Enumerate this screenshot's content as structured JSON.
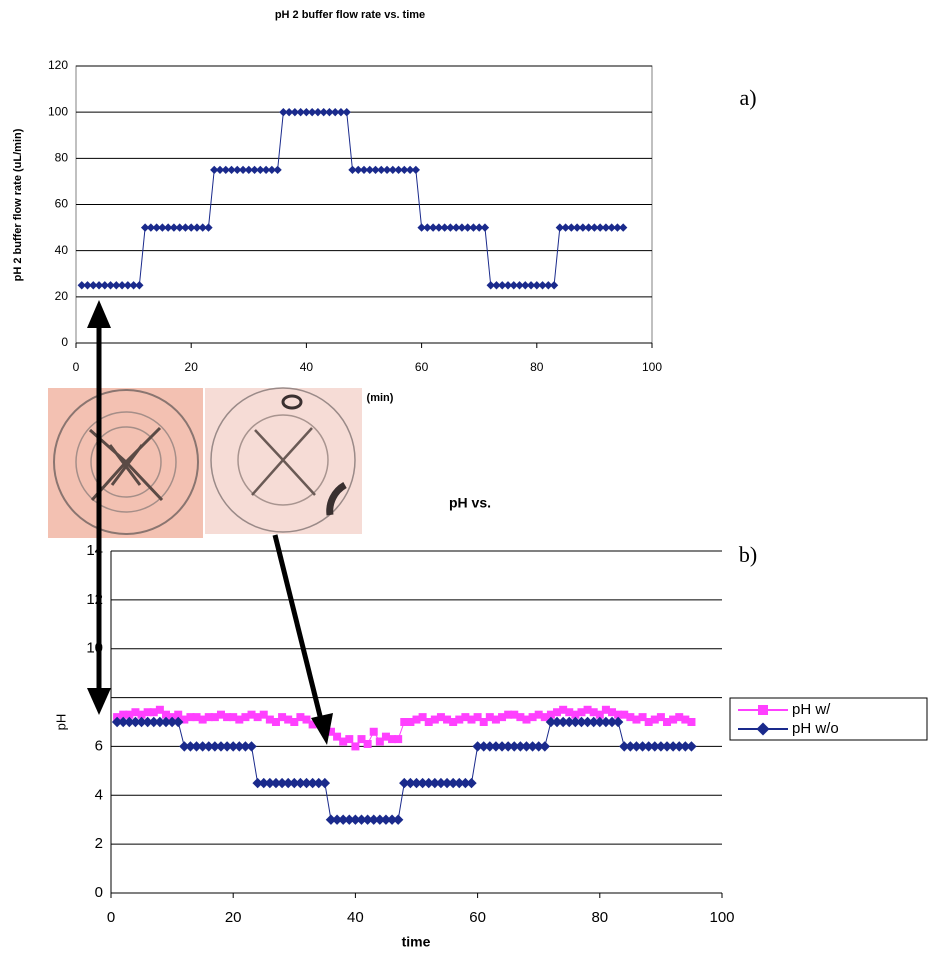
{
  "chart_data": [
    {
      "type": "line",
      "title": "pH 2 buffer flow rate vs. time",
      "panel_label": "a)",
      "x_label": "(min)",
      "y_label": "pH 2 buffer flow rate (uL/min)",
      "xlim": [
        0,
        100
      ],
      "xticks": [
        0,
        20,
        40,
        60,
        80,
        100
      ],
      "ylim": [
        0,
        120
      ],
      "yticks": [
        0,
        20,
        40,
        60,
        80,
        100,
        120
      ],
      "grid": true,
      "x": [
        1,
        2,
        3,
        4,
        5,
        6,
        7,
        8,
        9,
        10,
        11,
        12,
        13,
        14,
        15,
        16,
        17,
        18,
        19,
        20,
        21,
        22,
        23,
        24,
        25,
        26,
        27,
        28,
        29,
        30,
        31,
        32,
        33,
        34,
        35,
        36,
        37,
        38,
        39,
        40,
        41,
        42,
        43,
        44,
        45,
        46,
        47,
        48,
        49,
        50,
        51,
        52,
        53,
        54,
        55,
        56,
        57,
        58,
        59,
        60,
        61,
        62,
        63,
        64,
        65,
        66,
        67,
        68,
        69,
        70,
        71,
        72,
        73,
        74,
        75,
        76,
        77,
        78,
        79,
        80,
        81,
        82,
        83,
        84,
        85,
        86,
        87,
        88,
        89,
        90,
        91,
        92,
        93,
        94,
        95
      ],
      "series": [
        {
          "color": "#1a2a8c",
          "marker": "diamond",
          "values": [
            25,
            25,
            25,
            25,
            25,
            25,
            25,
            25,
            25,
            25,
            25,
            50,
            50,
            50,
            50,
            50,
            50,
            50,
            50,
            50,
            50,
            50,
            50,
            75,
            75,
            75,
            75,
            75,
            75,
            75,
            75,
            75,
            75,
            75,
            75,
            100,
            100,
            100,
            100,
            100,
            100,
            100,
            100,
            100,
            100,
            100,
            100,
            75,
            75,
            75,
            75,
            75,
            75,
            75,
            75,
            75,
            75,
            75,
            75,
            50,
            50,
            50,
            50,
            50,
            50,
            50,
            50,
            50,
            50,
            50,
            50,
            25,
            25,
            25,
            25,
            25,
            25,
            25,
            25,
            25,
            25,
            25,
            25,
            50,
            50,
            50,
            50,
            50,
            50,
            50,
            50,
            50,
            50,
            50,
            50
          ]
        }
      ]
    },
    {
      "type": "line",
      "title": "pH vs.",
      "panel_label": "b)",
      "x_label": "time",
      "y_label": "pH",
      "xlim": [
        0,
        100
      ],
      "xticks": [
        0,
        20,
        40,
        60,
        80,
        100
      ],
      "ylim": [
        0,
        14
      ],
      "yticks": [
        0,
        2,
        4,
        6,
        8,
        10,
        12,
        14
      ],
      "grid": true,
      "x": [
        1,
        2,
        3,
        4,
        5,
        6,
        7,
        8,
        9,
        10,
        11,
        12,
        13,
        14,
        15,
        16,
        17,
        18,
        19,
        20,
        21,
        22,
        23,
        24,
        25,
        26,
        27,
        28,
        29,
        30,
        31,
        32,
        33,
        34,
        35,
        36,
        37,
        38,
        39,
        40,
        41,
        42,
        43,
        44,
        45,
        46,
        47,
        48,
        49,
        50,
        51,
        52,
        53,
        54,
        55,
        56,
        57,
        58,
        59,
        60,
        61,
        62,
        63,
        64,
        65,
        66,
        67,
        68,
        69,
        70,
        71,
        72,
        73,
        74,
        75,
        76,
        77,
        78,
        79,
        80,
        81,
        82,
        83,
        84,
        85,
        86,
        87,
        88,
        89,
        90,
        91,
        92,
        93,
        94,
        95
      ],
      "series": [
        {
          "name": "pH w/",
          "color": "#ff40ff",
          "marker": "square",
          "values": [
            7.2,
            7.3,
            7.3,
            7.4,
            7.3,
            7.4,
            7.4,
            7.5,
            7.3,
            7.2,
            7.3,
            7.1,
            7.2,
            7.2,
            7.1,
            7.2,
            7.2,
            7.3,
            7.2,
            7.2,
            7.1,
            7.2,
            7.3,
            7.2,
            7.3,
            7.1,
            7.0,
            7.2,
            7.1,
            7.0,
            7.2,
            7.1,
            6.9,
            7.0,
            6.8,
            6.6,
            6.4,
            6.2,
            6.3,
            6.0,
            6.3,
            6.1,
            6.6,
            6.2,
            6.4,
            6.3,
            6.3,
            7.0,
            7.0,
            7.1,
            7.2,
            7.0,
            7.1,
            7.2,
            7.1,
            7.0,
            7.1,
            7.2,
            7.1,
            7.2,
            7.0,
            7.2,
            7.1,
            7.2,
            7.3,
            7.3,
            7.2,
            7.1,
            7.2,
            7.3,
            7.2,
            7.3,
            7.4,
            7.5,
            7.4,
            7.3,
            7.4,
            7.5,
            7.4,
            7.3,
            7.5,
            7.4,
            7.3,
            7.3,
            7.2,
            7.1,
            7.2,
            7.0,
            7.1,
            7.2,
            7.0,
            7.1,
            7.2,
            7.1,
            7.0
          ]
        },
        {
          "name": "pH w/o",
          "color": "#1a2a8c",
          "marker": "diamond",
          "values": [
            7,
            7,
            7,
            7,
            7,
            7,
            7,
            7,
            7,
            7,
            7,
            6,
            6,
            6,
            6,
            6,
            6,
            6,
            6,
            6,
            6,
            6,
            6,
            4.5,
            4.5,
            4.5,
            4.5,
            4.5,
            4.5,
            4.5,
            4.5,
            4.5,
            4.5,
            4.5,
            4.5,
            3,
            3,
            3,
            3,
            3,
            3,
            3,
            3,
            3,
            3,
            3,
            3,
            4.5,
            4.5,
            4.5,
            4.5,
            4.5,
            4.5,
            4.5,
            4.5,
            4.5,
            4.5,
            4.5,
            4.5,
            6,
            6,
            6,
            6,
            6,
            6,
            6,
            6,
            6,
            6,
            6,
            6,
            7,
            7,
            7,
            7,
            7,
            7,
            7,
            7,
            7,
            7,
            7,
            7,
            6,
            6,
            6,
            6,
            6,
            6,
            6,
            6,
            6,
            6,
            6,
            6
          ]
        }
      ]
    }
  ]
}
